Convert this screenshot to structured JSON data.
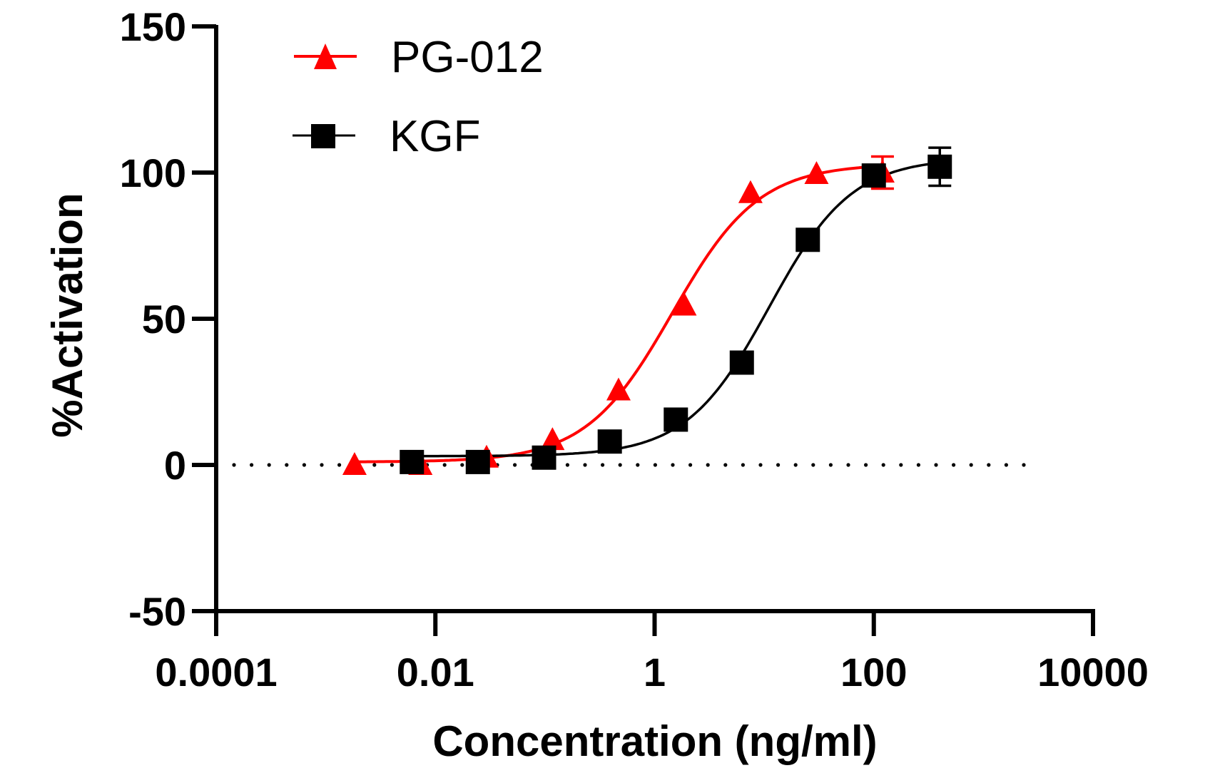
{
  "chart_data": {
    "type": "line",
    "subtype": "dose-response (log x-axis, 4PL fitted curves)",
    "title": "",
    "xlabel": "Concentration (ng/ml)",
    "ylabel": "%Activation",
    "xscale": "log10",
    "xlim": [
      0.0001,
      10000
    ],
    "ylim": [
      -50,
      150
    ],
    "xticks": [
      0.0001,
      0.01,
      1,
      100,
      10000
    ],
    "xtick_labels": [
      "0.0001",
      "0.01",
      "1",
      "100",
      "10000"
    ],
    "yticks": [
      -50,
      0,
      50,
      100,
      150
    ],
    "ytick_labels": [
      "-50",
      "0",
      "50",
      "100",
      "150"
    ],
    "reference_line": {
      "y": 0,
      "style": "dotted",
      "x_end": 3000
    },
    "grid": false,
    "legend": {
      "position": "top-left"
    },
    "series": [
      {
        "name": "PG-012",
        "color": "#ff0000",
        "marker": "triangle",
        "x": [
          0.00183,
          0.0073,
          0.0293,
          0.117,
          0.469,
          1.875,
          7.5,
          30,
          120
        ],
        "y": [
          0,
          0,
          2.5,
          8.5,
          25.5,
          54.5,
          93,
          99.5,
          100
        ],
        "error": [
          0,
          0,
          0,
          0,
          0,
          0,
          0,
          0,
          5.5
        ]
      },
      {
        "name": "KGF",
        "color": "#000000",
        "marker": "square",
        "x": [
          0.0061,
          0.0244,
          0.098,
          0.39,
          1.5625,
          6.25,
          25,
          100,
          400
        ],
        "y": [
          1,
          1,
          2.5,
          8,
          15.5,
          35,
          77,
          99,
          102
        ],
        "error": [
          0,
          0,
          0,
          0,
          0,
          0,
          0,
          0,
          6.5
        ]
      }
    ]
  }
}
